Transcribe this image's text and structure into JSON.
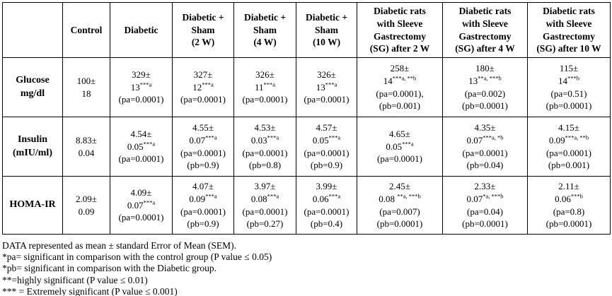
{
  "table": {
    "columns": [
      "",
      "Control",
      "Diabetic",
      "Diabetic +\nSham\n(2 W)",
      "Diabetic +\nSham\n(4 W)",
      "Diabetic +\nSham\n(10 W)",
      "Diabetic rats\nwith Sleeve\nGastrectomy\n(SG) after 2 W",
      "Diabetic rats\nwith Sleeve\nGastrectomy\n(SG) after 4 W",
      "Diabetic rats\nwith Sleeve\nGastrectomy\n(SG) after 10 W"
    ],
    "rows": [
      {
        "label": "Glucose\nmg/dl",
        "cells": [
          [
            "100±",
            "18"
          ],
          [
            "329±",
            "13^{***a}",
            "(pa=0.0001)"
          ],
          [
            "327±",
            "12^{***a}",
            "(pa=0.0001)"
          ],
          [
            "326±",
            "11^{***a}",
            "(pa=0.0001)"
          ],
          [
            "326±",
            "13^{***a}",
            "(pa=0.0001)"
          ],
          [
            "258±",
            "14^{***a, **b}",
            "(pa=0.0001),",
            "(pb=0.001)"
          ],
          [
            "180±",
            "13^{**a, ***b}",
            "(pa=0.002)",
            "(pb=0.0001)"
          ],
          [
            "115±",
            "14^{***b}",
            "(pa=0.51)",
            "(pb=0.0001)"
          ]
        ]
      },
      {
        "label": "Insulin\n(mIU/ml)",
        "cells": [
          [
            "8.83±",
            "0.04"
          ],
          [
            "4.54±",
            "0.05^{***a}",
            "(pa=0.0001)"
          ],
          [
            "4.55±",
            "0.07^{***a}",
            "(pa=0.0001)",
            "(pb=0.9)"
          ],
          [
            "4.53±",
            "0.03^{***a}",
            "(pa=0.0001)",
            "(pb=0.8)"
          ],
          [
            "4.57±",
            "0.05^{***a}",
            "(pa=0.0001)",
            "(pb=0.9)"
          ],
          [
            "4.65±",
            "0.05^{***a}",
            "(pa=0.0001)"
          ],
          [
            "4.35±",
            "0.07^{***a, *b}",
            "(pa=0.0001)",
            "(pb=0.04)"
          ],
          [
            "4.15±",
            "0.09^{***a, **b}",
            "(pa=0.0001)",
            "(pb=0.001)"
          ]
        ]
      },
      {
        "label": "HOMA-IR",
        "cells": [
          [
            "2.09±",
            "0.09"
          ],
          [
            "4.09±",
            "0.07^{***a}",
            "(pa=0.0001)"
          ],
          [
            "4.07±",
            "0.09^{***a}",
            "(pa=0.0001)",
            "(pb=0.9)"
          ],
          [
            "3.97±",
            "0.08^{***a}",
            "(pa=0.0001)",
            "(pb=0.27)"
          ],
          [
            "3.99±",
            "0.06^{***a}",
            "(pa=0.0001)",
            "(pb=0.4)"
          ],
          [
            "2.45±",
            "0.08 ^{**a, ***b}",
            "(pa=0.007)",
            "(pb=0.0001)"
          ],
          [
            "2.33±",
            "0.07^{*a, ***b}",
            "(pa=0.04)",
            "(pb=0.0001)"
          ],
          [
            "2.11±",
            "0.06^{***b}",
            "(pa=0.8)",
            "(pb=0.0001)"
          ]
        ]
      }
    ]
  },
  "footnotes": [
    "DATA represented as mean ± standard Error of Mean (SEM).",
    "*pa= significant in comparison with the control group (P value ≤ 0.05)",
    "*pb= significant in comparison with the Diabetic group.",
    "**=highly significant (P value ≤ 0.01)",
    "*** = Extremely significant (P value ≤ 0.001)"
  ]
}
